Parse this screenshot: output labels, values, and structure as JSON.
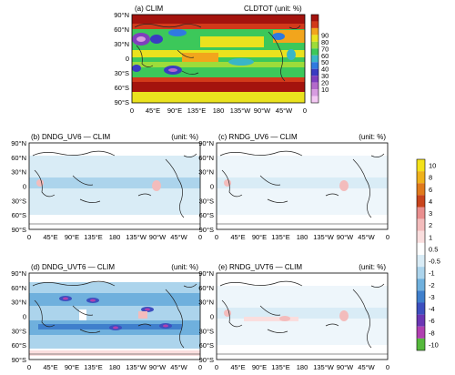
{
  "top_panel": {
    "label": "(a)  CLIM",
    "title_right": "CLDTOT (unit: %)",
    "colorbar_ticks": [
      "10",
      "20",
      "30",
      "40",
      "50",
      "60",
      "70",
      "80",
      "90"
    ],
    "colorbar_colors": [
      "#f4c8f4",
      "#d79ce0",
      "#b36acb",
      "#7f3fbe",
      "#3a3cc2",
      "#2f7ae0",
      "#39b6c7",
      "#3cc85a",
      "#9ddc3a",
      "#eae21e",
      "#f2a51c",
      "#d23a1a",
      "#a4130e"
    ]
  },
  "lat_labels": [
    "90°N",
    "60°N",
    "30°N",
    "0",
    "30°S",
    "60°S",
    "90°S"
  ],
  "lon_labels": [
    "0",
    "45°E",
    "90°E",
    "135°E",
    "180",
    "135°W",
    "90°W",
    "45°W",
    "0"
  ],
  "panels": [
    {
      "label": "(b)  DNDG_UV6 — CLIM",
      "unit": "(unit: %)"
    },
    {
      "label": "(c)  RNDG_UV6 — CLIM",
      "unit": "(unit: %)"
    },
    {
      "label": "(d)  DNDG_UVT6 — CLIM",
      "unit": "(unit: %)"
    },
    {
      "label": "(e)  RNDG_UVT6 — CLIM",
      "unit": "(unit: %)"
    }
  ],
  "diff_colorbar": {
    "ticks": [
      "10",
      "8",
      "6",
      "4",
      "3",
      "2",
      "1",
      "0.5",
      "-0.5",
      "-1",
      "-2",
      "-3",
      "-4",
      "-6",
      "-8",
      "-10"
    ],
    "colors": [
      "#f4e21a",
      "#efb21b",
      "#e07a1c",
      "#c8441c",
      "#e98e8e",
      "#f3bcbc",
      "#fadede",
      "#ffffff",
      "#d9ecf6",
      "#acd4ec",
      "#6fb0dd",
      "#3f7fcc",
      "#3d4fbf",
      "#6b36b4",
      "#b040b0",
      "#55b93c"
    ]
  }
}
